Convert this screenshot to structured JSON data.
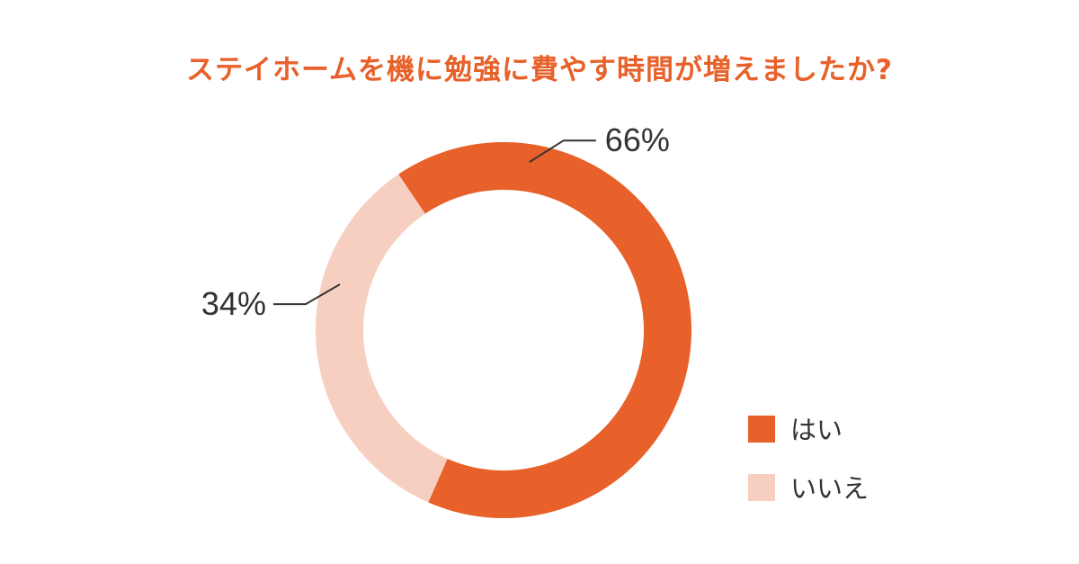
{
  "colors": {
    "title": "#E8602A",
    "primary": "#E8602A",
    "secondary": "#F7CFC0",
    "text": "#333333",
    "leader_line": "#333333"
  },
  "chart_data": {
    "type": "pie",
    "title": "ステイホームを機に勉強に費やす時間が増えましたか?",
    "style": "donut",
    "legend_position": "bottom-right",
    "slices": [
      {
        "label": "はい",
        "value": 66,
        "value_label": "66%",
        "color": "#E8602A"
      },
      {
        "label": "いいえ",
        "value": 34,
        "value_label": "34%",
        "color": "#F7CFC0"
      }
    ]
  }
}
